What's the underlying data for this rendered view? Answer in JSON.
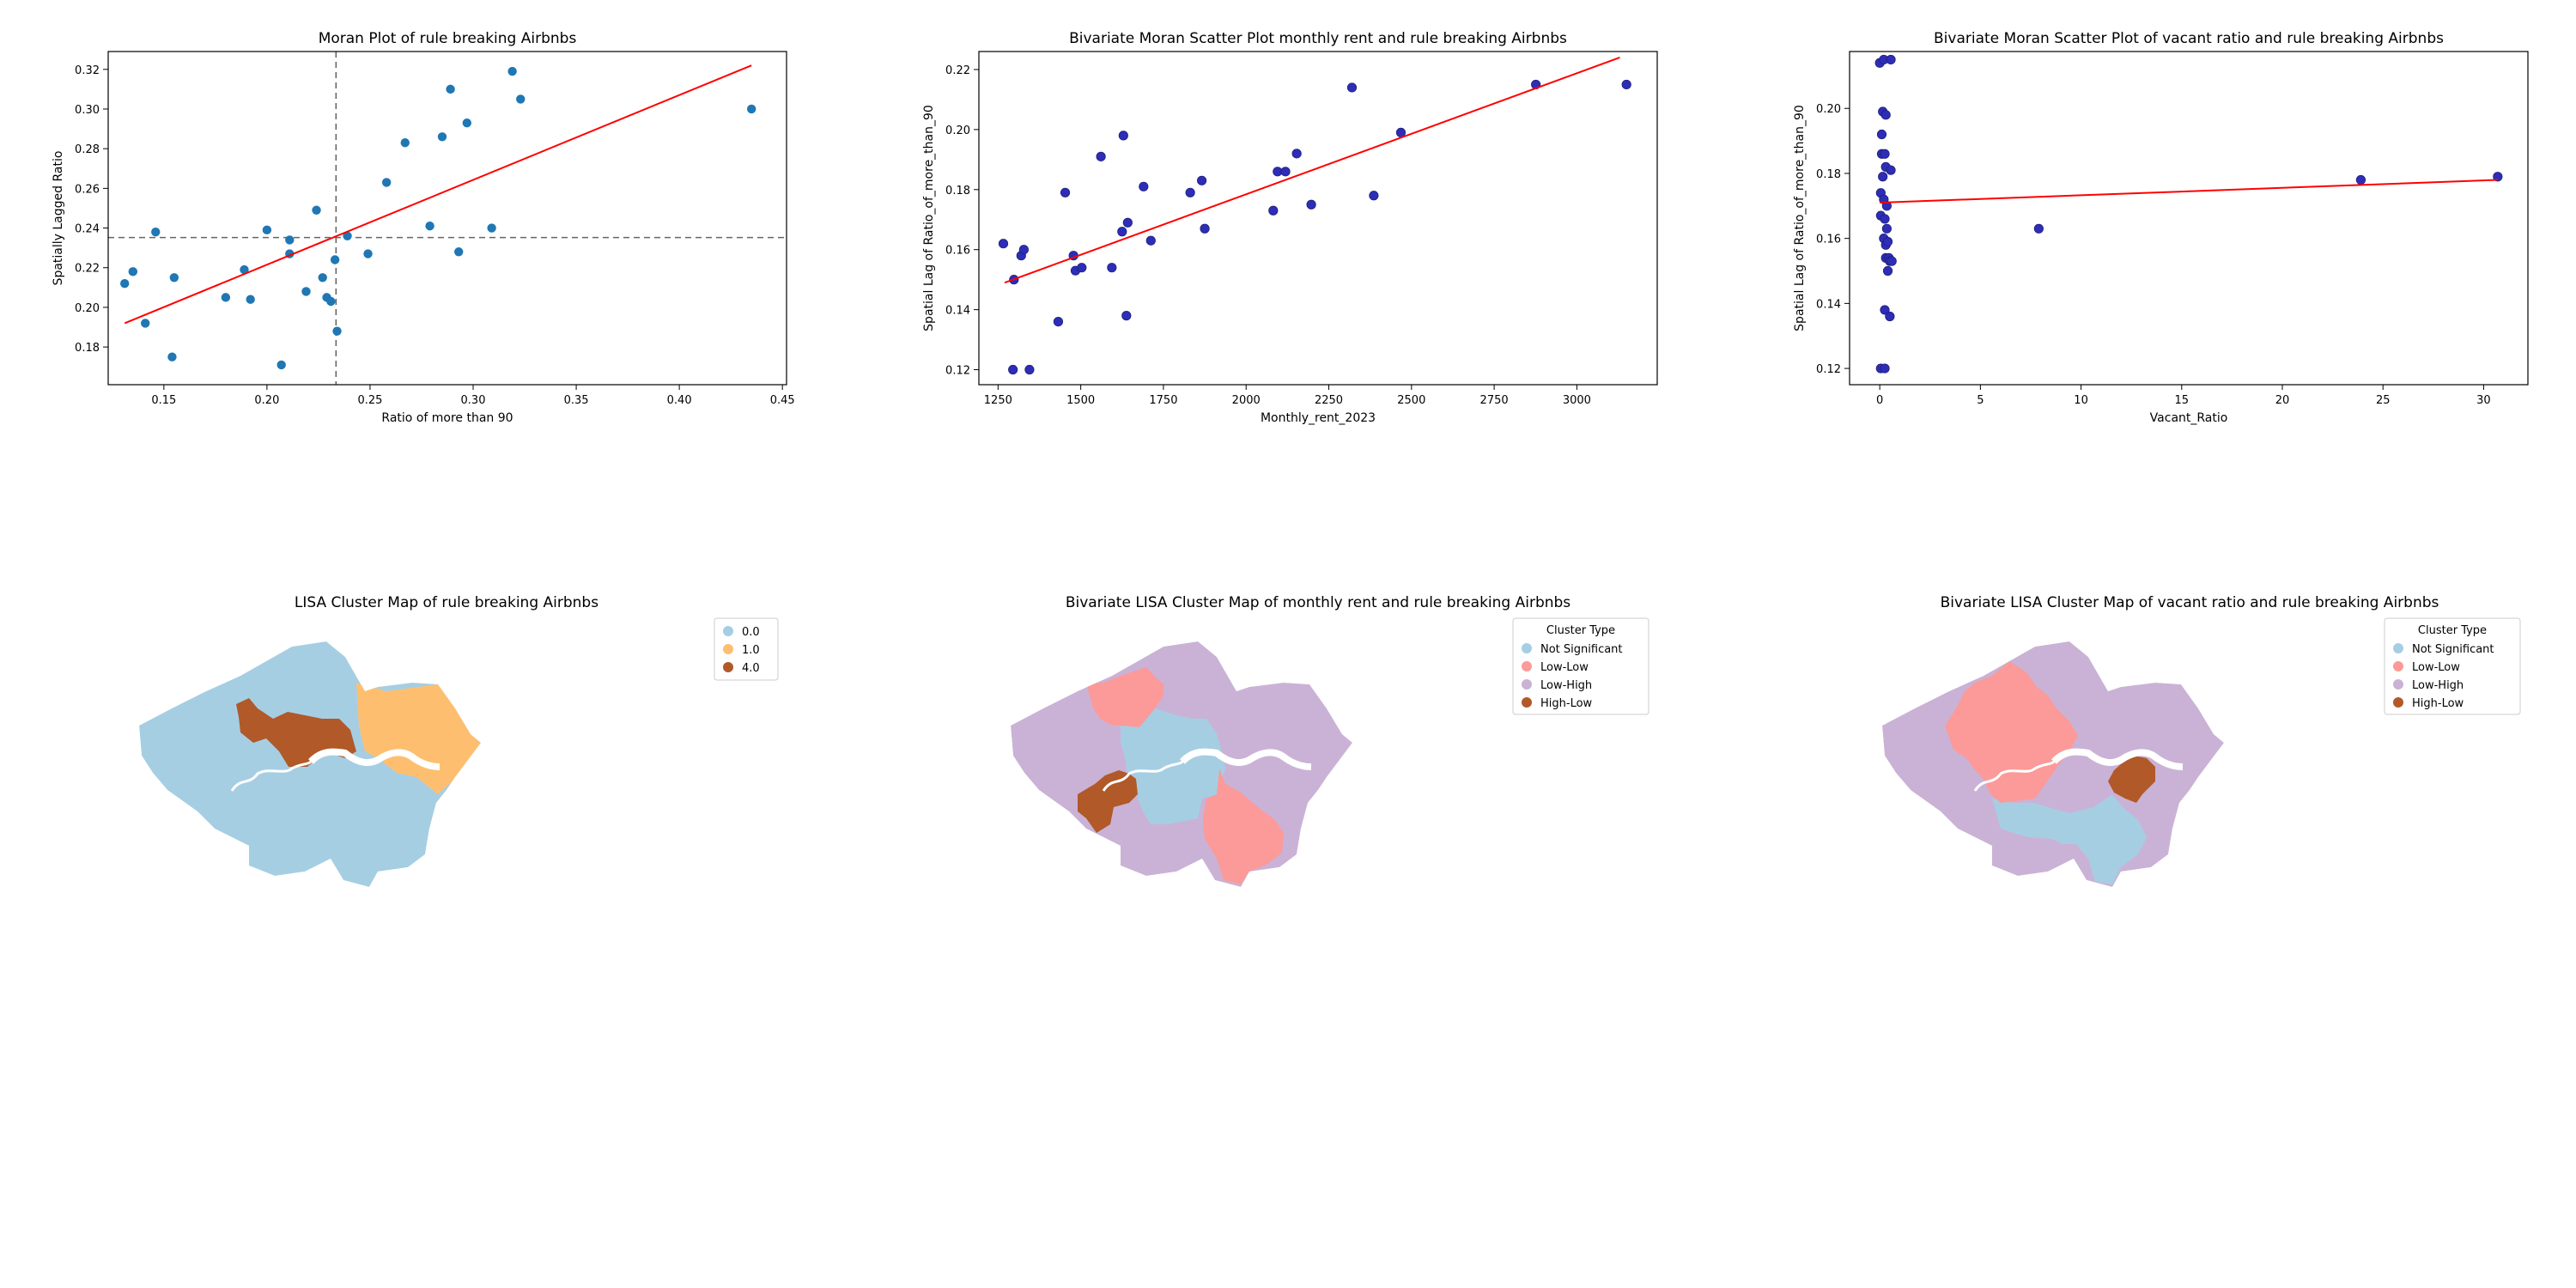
{
  "chart_data": [
    {
      "type": "scatter",
      "title": "Moran Plot of rule breaking Airbnbs",
      "xlabel": "Ratio of more than 90",
      "ylabel": "Spatially Lagged Ratio",
      "xlim": [
        0.123,
        0.452
      ],
      "ylim": [
        0.161,
        0.329
      ],
      "xticks": [
        "0.15",
        "0.20",
        "0.25",
        "0.30",
        "0.35",
        "0.40",
        "0.45"
      ],
      "yticks": [
        "0.18",
        "0.20",
        "0.22",
        "0.24",
        "0.26",
        "0.28",
        "0.30",
        "0.32"
      ],
      "point_color": "#1f77b4",
      "fit_color": "#ff0000",
      "fit_line": [
        [
          0.131,
          0.192
        ],
        [
          0.435,
          0.322
        ]
      ],
      "ref_lines": {
        "x_mean": 0.2335,
        "y_mean": 0.2352
      },
      "points": [
        [
          0.131,
          0.212
        ],
        [
          0.135,
          0.218
        ],
        [
          0.141,
          0.192
        ],
        [
          0.146,
          0.238
        ],
        [
          0.154,
          0.175
        ],
        [
          0.155,
          0.215
        ],
        [
          0.18,
          0.205
        ],
        [
          0.189,
          0.219
        ],
        [
          0.192,
          0.204
        ],
        [
          0.2,
          0.239
        ],
        [
          0.207,
          0.171
        ],
        [
          0.211,
          0.234
        ],
        [
          0.211,
          0.227
        ],
        [
          0.219,
          0.208
        ],
        [
          0.224,
          0.249
        ],
        [
          0.227,
          0.215
        ],
        [
          0.229,
          0.205
        ],
        [
          0.231,
          0.203
        ],
        [
          0.233,
          0.224
        ],
        [
          0.234,
          0.188
        ],
        [
          0.239,
          0.236
        ],
        [
          0.249,
          0.227
        ],
        [
          0.258,
          0.263
        ],
        [
          0.267,
          0.283
        ],
        [
          0.279,
          0.241
        ],
        [
          0.285,
          0.286
        ],
        [
          0.289,
          0.31
        ],
        [
          0.293,
          0.228
        ],
        [
          0.297,
          0.293
        ],
        [
          0.309,
          0.24
        ],
        [
          0.319,
          0.319
        ],
        [
          0.323,
          0.305
        ],
        [
          0.435,
          0.3
        ]
      ]
    },
    {
      "type": "scatter",
      "title": "Bivariate Moran Scatter Plot monthly rent and rule breaking Airbnbs",
      "xlabel": "Monthly_rent_2023",
      "ylabel": "Spatial Lag of Ratio_of_more_than_90",
      "xlim": [
        1192,
        3243
      ],
      "ylim": [
        0.115,
        0.226
      ],
      "xticks": [
        "1250",
        "1500",
        "1750",
        "2000",
        "2250",
        "2500",
        "2750",
        "3000"
      ],
      "yticks": [
        "0.12",
        "0.14",
        "0.16",
        "0.18",
        "0.20",
        "0.22"
      ],
      "point_color": "#2d2db8",
      "fit_color": "#ff0000",
      "fit_line": [
        [
          1270,
          0.149
        ],
        [
          3130,
          0.224
        ]
      ],
      "points": [
        [
          1266,
          0.162
        ],
        [
          1295,
          0.12
        ],
        [
          1298,
          0.15
        ],
        [
          1320,
          0.158
        ],
        [
          1328,
          0.16
        ],
        [
          1345,
          0.12
        ],
        [
          1432,
          0.136
        ],
        [
          1453,
          0.179
        ],
        [
          1478,
          0.158
        ],
        [
          1484,
          0.153
        ],
        [
          1503,
          0.154
        ],
        [
          1561,
          0.191
        ],
        [
          1594,
          0.154
        ],
        [
          1625,
          0.166
        ],
        [
          1629,
          0.198
        ],
        [
          1638,
          0.138
        ],
        [
          1642,
          0.169
        ],
        [
          1690,
          0.181
        ],
        [
          1712,
          0.163
        ],
        [
          1831,
          0.179
        ],
        [
          1866,
          0.183
        ],
        [
          1875,
          0.167
        ],
        [
          2082,
          0.173
        ],
        [
          2095,
          0.186
        ],
        [
          2119,
          0.186
        ],
        [
          2153,
          0.192
        ],
        [
          2197,
          0.175
        ],
        [
          2320,
          0.214
        ],
        [
          2386,
          0.178
        ],
        [
          2468,
          0.199
        ],
        [
          2876,
          0.215
        ],
        [
          3150,
          0.215
        ]
      ]
    },
    {
      "type": "scatter",
      "title": "Bivariate Moran Scatter Plot of vacant ratio and rule breaking Airbnbs",
      "xlabel": "Vacant_Ratio",
      "ylabel": "Spatial Lag of Ratio_of_more_than_90",
      "xlim": [
        -1.5,
        32.2
      ],
      "ylim": [
        0.115,
        0.2175
      ],
      "xticks": [
        "0",
        "5",
        "10",
        "15",
        "20",
        "25",
        "30"
      ],
      "yticks": [
        "0.12",
        "0.14",
        "0.16",
        "0.18",
        "0.20"
      ],
      "point_color": "#2d2db8",
      "fit_color": "#ff0000",
      "fit_line": [
        [
          0.0,
          0.171
        ],
        [
          30.7,
          0.178
        ]
      ],
      "points": [
        [
          0.0,
          0.214
        ],
        [
          0.05,
          0.12
        ],
        [
          0.05,
          0.167
        ],
        [
          0.05,
          0.174
        ],
        [
          0.1,
          0.186
        ],
        [
          0.1,
          0.192
        ],
        [
          0.15,
          0.179
        ],
        [
          0.15,
          0.199
        ],
        [
          0.2,
          0.16
        ],
        [
          0.2,
          0.215
        ],
        [
          0.2,
          0.172
        ],
        [
          0.25,
          0.138
        ],
        [
          0.25,
          0.12
        ],
        [
          0.25,
          0.166
        ],
        [
          0.25,
          0.186
        ],
        [
          0.3,
          0.154
        ],
        [
          0.3,
          0.158
        ],
        [
          0.3,
          0.198
        ],
        [
          0.3,
          0.182
        ],
        [
          0.35,
          0.163
        ],
        [
          0.35,
          0.17
        ],
        [
          0.4,
          0.15
        ],
        [
          0.4,
          0.159
        ],
        [
          0.45,
          0.154
        ],
        [
          0.5,
          0.136
        ],
        [
          0.5,
          0.153
        ],
        [
          0.55,
          0.215
        ],
        [
          0.55,
          0.181
        ],
        [
          0.6,
          0.153
        ],
        [
          7.9,
          0.163
        ],
        [
          23.9,
          0.178
        ],
        [
          30.7,
          0.179
        ]
      ]
    },
    {
      "type": "map",
      "title": "LISA Cluster Map of rule breaking Airbnbs",
      "legend_position": "top-right",
      "legend_title": "",
      "legend": [
        {
          "label": "0.0",
          "color": "#a6cee3"
        },
        {
          "label": "1.0",
          "color": "#fdbf6f"
        },
        {
          "label": "4.0",
          "color": "#b15928"
        }
      ]
    },
    {
      "type": "map",
      "title": "Bivariate LISA Cluster Map of monthly rent and rule breaking Airbnbs",
      "legend_position": "top-right",
      "legend_title": "Cluster Type",
      "legend": [
        {
          "label": "Not Significant",
          "color": "#a6cee3"
        },
        {
          "label": "Low-Low",
          "color": "#fb9a99"
        },
        {
          "label": "Low-High",
          "color": "#cab2d6"
        },
        {
          "label": "High-Low",
          "color": "#b15928"
        }
      ]
    },
    {
      "type": "map",
      "title": "Bivariate LISA Cluster Map of vacant ratio and rule breaking Airbnbs",
      "legend_position": "top-right",
      "legend_title": "Cluster Type",
      "legend": [
        {
          "label": "Not Significant",
          "color": "#a6cee3"
        },
        {
          "label": "Low-Low",
          "color": "#fb9a99"
        },
        {
          "label": "Low-High",
          "color": "#cab2d6"
        },
        {
          "label": "High-Low",
          "color": "#b15928"
        }
      ]
    }
  ]
}
